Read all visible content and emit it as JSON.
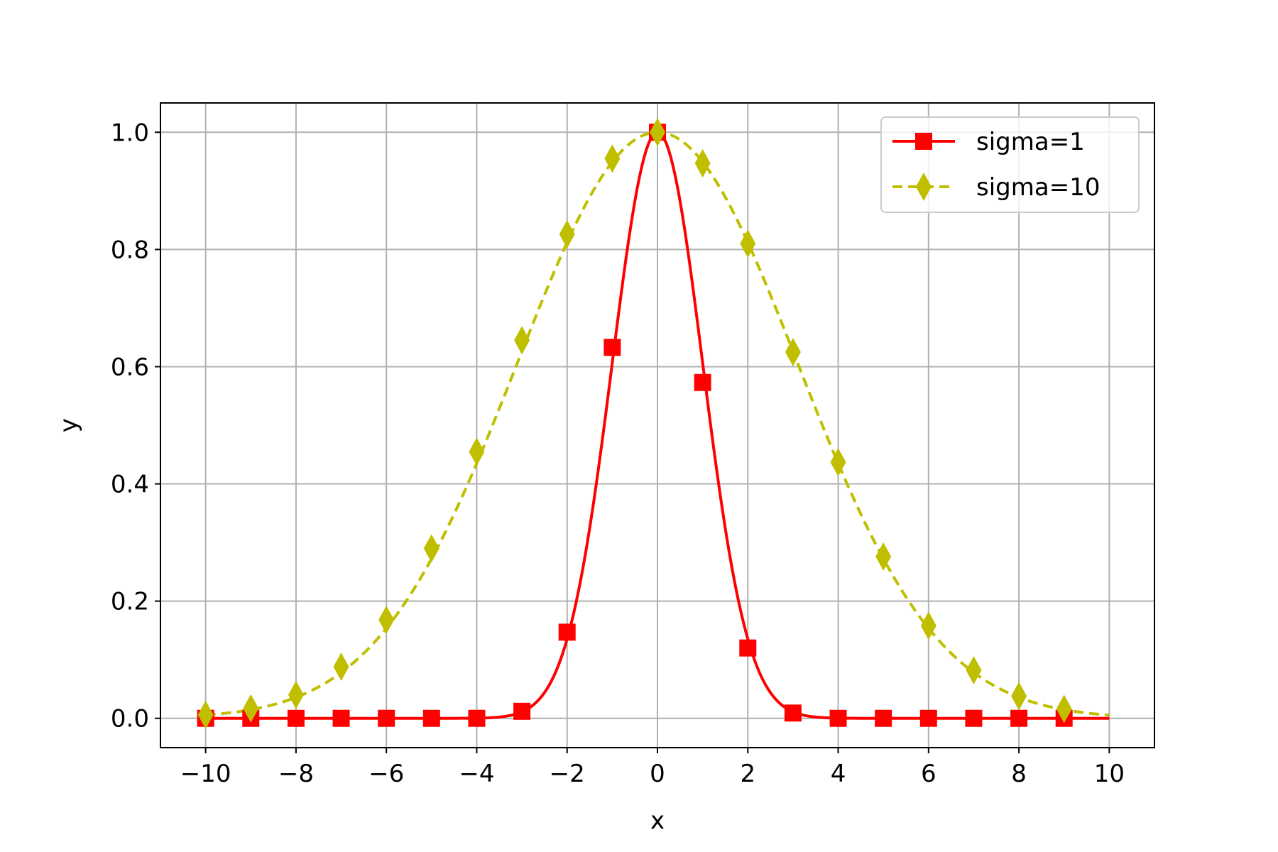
{
  "chart_data": {
    "type": "line",
    "title": "",
    "xlabel": "x",
    "ylabel": "y",
    "xlim": [
      -11,
      11
    ],
    "ylim": [
      -0.05,
      1.05
    ],
    "xticks": [
      -10,
      -8,
      -6,
      -4,
      -2,
      0,
      2,
      4,
      6,
      8,
      10
    ],
    "xtick_labels": [
      "−10",
      "−8",
      "−6",
      "−4",
      "−2",
      "0",
      "2",
      "4",
      "6",
      "8",
      "10"
    ],
    "yticks": [
      0.0,
      0.2,
      0.4,
      0.6,
      0.8,
      1.0
    ],
    "ytick_labels": [
      "0.0",
      "0.2",
      "0.4",
      "0.6",
      "0.8",
      "1.0"
    ],
    "grid": true,
    "legend_position": "top-right",
    "series": [
      {
        "name": "sigma=1",
        "color": "#ff0000",
        "line_style": "solid",
        "marker": "square",
        "curve_sigma": 1,
        "x_range": [
          -10,
          10
        ],
        "markers_x": [
          -10,
          -9,
          -8,
          -7,
          -6,
          -5,
          -4,
          -3,
          -2,
          -1,
          0,
          1,
          2,
          3,
          4,
          5,
          6,
          7,
          8,
          9
        ],
        "markers_y": [
          0.0,
          0.0,
          0.0,
          0.0,
          0.0,
          0.0,
          0.0,
          0.012,
          0.147,
          0.633,
          1.0,
          0.573,
          0.12,
          0.009,
          0.0,
          0.0,
          0.0,
          0.0,
          0.0,
          0.0
        ]
      },
      {
        "name": "sigma=10",
        "color": "#bfbf00",
        "line_style": "dashed",
        "marker": "diamond",
        "curve_sigma": 3.1,
        "x_range": [
          -10,
          10
        ],
        "markers_x": [
          -10,
          -9,
          -8,
          -7,
          -6,
          -5,
          -4,
          -3,
          -2,
          -1,
          0,
          1,
          2,
          3,
          4,
          5,
          6,
          7,
          8,
          9
        ],
        "markers_y": [
          0.006,
          0.017,
          0.04,
          0.088,
          0.168,
          0.29,
          0.455,
          0.645,
          0.826,
          0.955,
          1.0,
          0.947,
          0.81,
          0.625,
          0.437,
          0.276,
          0.158,
          0.082,
          0.038,
          0.016
        ]
      }
    ]
  }
}
